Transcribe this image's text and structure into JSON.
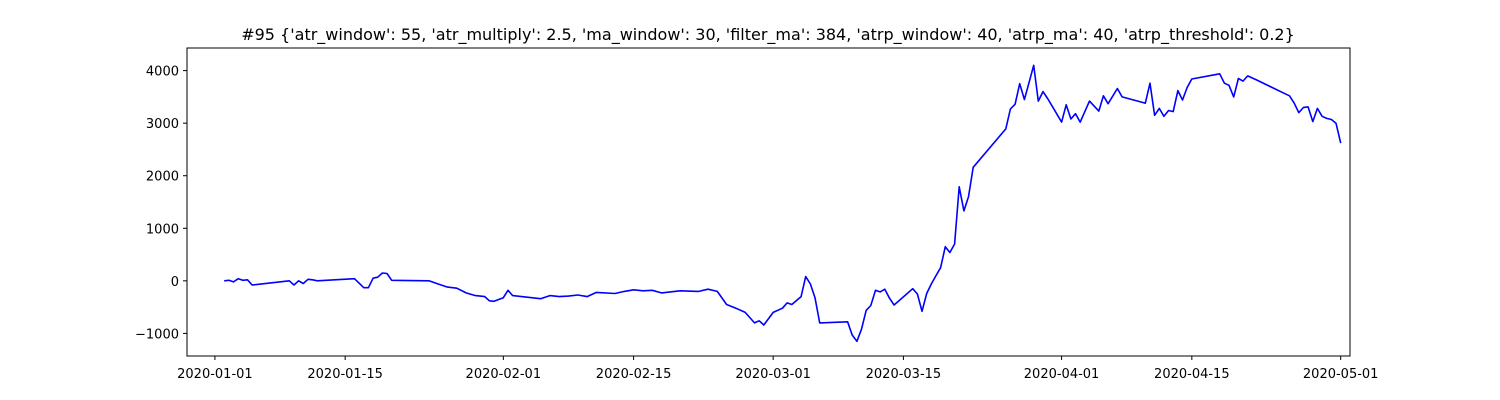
{
  "chart_data": {
    "type": "line",
    "title": "#95 {'atr_window': 55, 'atr_multiply': 2.5, 'ma_window': 30, 'filter_ma': 384, 'atrp_window': 40, 'atrp_ma': 40, 'atrp_threshold': 0.2}",
    "xlabel": "",
    "ylabel": "",
    "x_type": "date",
    "xlim": [
      "2019-12-29",
      "2020-05-02"
    ],
    "ylim": [
      -1430,
      4430
    ],
    "x_ticks": [
      "2020-01-01",
      "2020-01-15",
      "2020-02-01",
      "2020-02-15",
      "2020-03-01",
      "2020-03-15",
      "2020-04-01",
      "2020-04-15",
      "2020-05-01"
    ],
    "y_ticks": [
      -1000,
      0,
      1000,
      2000,
      3000,
      4000
    ],
    "grid": false,
    "legend": "none",
    "series": [
      {
        "color": "#0000ff",
        "points": [
          [
            "2020-01-02",
            0
          ],
          [
            "2020-01-02T12:00",
            10
          ],
          [
            "2020-01-03",
            -20
          ],
          [
            "2020-01-03T12:00",
            40
          ],
          [
            "2020-01-04",
            10
          ],
          [
            "2020-01-04T12:00",
            20
          ],
          [
            "2020-01-05",
            -80
          ],
          [
            "2020-01-09",
            0
          ],
          [
            "2020-01-09T12:00",
            -80
          ],
          [
            "2020-01-10",
            0
          ],
          [
            "2020-01-10T12:00",
            -50
          ],
          [
            "2020-01-11",
            30
          ],
          [
            "2020-01-11T12:00",
            20
          ],
          [
            "2020-01-12",
            0
          ],
          [
            "2020-01-16",
            40
          ],
          [
            "2020-01-17",
            -130
          ],
          [
            "2020-01-17T12:00",
            -130
          ],
          [
            "2020-01-18",
            50
          ],
          [
            "2020-01-18T12:00",
            70
          ],
          [
            "2020-01-19",
            150
          ],
          [
            "2020-01-19T12:00",
            140
          ],
          [
            "2020-01-20",
            10
          ],
          [
            "2020-01-24",
            0
          ],
          [
            "2020-01-25",
            -60
          ],
          [
            "2020-01-26",
            -120
          ],
          [
            "2020-01-27",
            -140
          ],
          [
            "2020-01-28",
            -230
          ],
          [
            "2020-01-29",
            -280
          ],
          [
            "2020-01-30",
            -300
          ],
          [
            "2020-01-30T12:00",
            -380
          ],
          [
            "2020-01-31",
            -390
          ],
          [
            "2020-02-01",
            -320
          ],
          [
            "2020-02-01T12:00",
            -180
          ],
          [
            "2020-02-02",
            -280
          ],
          [
            "2020-02-05",
            -340
          ],
          [
            "2020-02-06",
            -280
          ],
          [
            "2020-02-07",
            -300
          ],
          [
            "2020-02-08",
            -290
          ],
          [
            "2020-02-09",
            -270
          ],
          [
            "2020-02-10",
            -300
          ],
          [
            "2020-02-11",
            -220
          ],
          [
            "2020-02-13",
            -240
          ],
          [
            "2020-02-14",
            -200
          ],
          [
            "2020-02-15",
            -170
          ],
          [
            "2020-02-16",
            -190
          ],
          [
            "2020-02-17",
            -180
          ],
          [
            "2020-02-18",
            -230
          ],
          [
            "2020-02-20",
            -190
          ],
          [
            "2020-02-22",
            -200
          ],
          [
            "2020-02-23",
            -160
          ],
          [
            "2020-02-24",
            -200
          ],
          [
            "2020-02-25",
            -450
          ],
          [
            "2020-02-26",
            -520
          ],
          [
            "2020-02-27",
            -600
          ],
          [
            "2020-02-28",
            -800
          ],
          [
            "2020-02-28T12:00",
            -760
          ],
          [
            "2020-02-29",
            -840
          ],
          [
            "2020-03-01",
            -600
          ],
          [
            "2020-03-02",
            -520
          ],
          [
            "2020-03-02T12:00",
            -420
          ],
          [
            "2020-03-03",
            -450
          ],
          [
            "2020-03-04",
            -300
          ],
          [
            "2020-03-04T12:00",
            80
          ],
          [
            "2020-03-05",
            -60
          ],
          [
            "2020-03-05T12:00",
            -320
          ],
          [
            "2020-03-06",
            -800
          ],
          [
            "2020-03-09",
            -780
          ],
          [
            "2020-03-09T12:00",
            -1030
          ],
          [
            "2020-03-10",
            -1150
          ],
          [
            "2020-03-10T12:00",
            -920
          ],
          [
            "2020-03-11",
            -560
          ],
          [
            "2020-03-11T12:00",
            -470
          ],
          [
            "2020-03-12",
            -180
          ],
          [
            "2020-03-12T12:00",
            -210
          ],
          [
            "2020-03-13",
            -160
          ],
          [
            "2020-03-13T12:00",
            -330
          ],
          [
            "2020-03-14",
            -460
          ],
          [
            "2020-03-16",
            -150
          ],
          [
            "2020-03-16T12:00",
            -250
          ],
          [
            "2020-03-17",
            -580
          ],
          [
            "2020-03-17T12:00",
            -240
          ],
          [
            "2020-03-18",
            -60
          ],
          [
            "2020-03-18T12:00",
            100
          ],
          [
            "2020-03-19",
            250
          ],
          [
            "2020-03-19T12:00",
            650
          ],
          [
            "2020-03-20",
            540
          ],
          [
            "2020-03-20T12:00",
            700
          ],
          [
            "2020-03-21",
            1790
          ],
          [
            "2020-03-21T12:00",
            1330
          ],
          [
            "2020-03-22",
            1600
          ],
          [
            "2020-03-22T12:00",
            2160
          ],
          [
            "2020-03-26",
            2890
          ],
          [
            "2020-03-26T12:00",
            3270
          ],
          [
            "2020-03-27",
            3360
          ],
          [
            "2020-03-27T12:00",
            3750
          ],
          [
            "2020-03-28",
            3450
          ],
          [
            "2020-03-28T12:00",
            3770
          ],
          [
            "2020-03-29",
            4100
          ],
          [
            "2020-03-29T12:00",
            3420
          ],
          [
            "2020-03-30",
            3600
          ],
          [
            "2020-03-30T12:00",
            3470
          ],
          [
            "2020-03-31",
            3320
          ],
          [
            "2020-04-01",
            3020
          ],
          [
            "2020-04-01T12:00",
            3350
          ],
          [
            "2020-04-02",
            3080
          ],
          [
            "2020-04-02T12:00",
            3180
          ],
          [
            "2020-04-03",
            3020
          ],
          [
            "2020-04-04",
            3420
          ],
          [
            "2020-04-05",
            3230
          ],
          [
            "2020-04-05T12:00",
            3520
          ],
          [
            "2020-04-06",
            3370
          ],
          [
            "2020-04-07",
            3660
          ],
          [
            "2020-04-07T12:00",
            3500
          ],
          [
            "2020-04-10",
            3380
          ],
          [
            "2020-04-10T12:00",
            3760
          ],
          [
            "2020-04-11",
            3150
          ],
          [
            "2020-04-11T12:00",
            3280
          ],
          [
            "2020-04-12",
            3130
          ],
          [
            "2020-04-12T12:00",
            3240
          ],
          [
            "2020-04-13",
            3220
          ],
          [
            "2020-04-13T12:00",
            3620
          ],
          [
            "2020-04-14",
            3440
          ],
          [
            "2020-04-14T12:00",
            3680
          ],
          [
            "2020-04-15",
            3840
          ],
          [
            "2020-04-18",
            3940
          ],
          [
            "2020-04-18T12:00",
            3760
          ],
          [
            "2020-04-19",
            3720
          ],
          [
            "2020-04-19T12:00",
            3500
          ],
          [
            "2020-04-20",
            3850
          ],
          [
            "2020-04-20T12:00",
            3800
          ],
          [
            "2020-04-21",
            3900
          ],
          [
            "2020-04-22",
            3820
          ],
          [
            "2020-04-25",
            3560
          ],
          [
            "2020-04-25T12:00",
            3520
          ],
          [
            "2020-04-26",
            3380
          ],
          [
            "2020-04-26T12:00",
            3200
          ],
          [
            "2020-04-27",
            3300
          ],
          [
            "2020-04-27T12:00",
            3310
          ],
          [
            "2020-04-28",
            3030
          ],
          [
            "2020-04-28T12:00",
            3280
          ],
          [
            "2020-04-29",
            3130
          ],
          [
            "2020-04-29T12:00",
            3090
          ],
          [
            "2020-04-30",
            3070
          ],
          [
            "2020-04-30T12:00",
            3000
          ],
          [
            "2020-05-01",
            2620
          ]
        ]
      }
    ]
  }
}
